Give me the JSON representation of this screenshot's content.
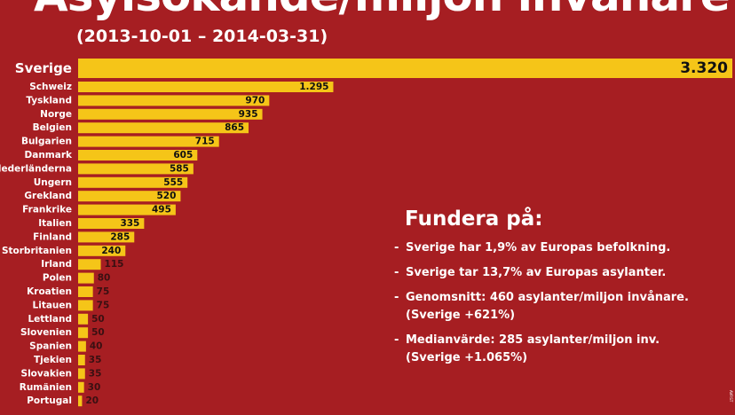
{
  "chart_data": {
    "type": "bar",
    "orientation": "horizontal",
    "title": "Asylsökande/miljon invånare",
    "subtitle": "(2013-10-01 – 2014-03-31)",
    "xlabel": "",
    "ylabel": "",
    "xlim": [
      0,
      3320
    ],
    "grid": false,
    "bar_color": "#f5c518",
    "background_color": "#a61e22",
    "categories": [
      "Sverige",
      "Schweiz",
      "Tyskland",
      "Norge",
      "Belgien",
      "Bulgarien",
      "Danmark",
      "Nederländerna",
      "Ungern",
      "Grekland",
      "Frankrike",
      "Italien",
      "Finland",
      "Storbritanien",
      "Irland",
      "Polen",
      "Kroatien",
      "Litauen",
      "Lettland",
      "Slovenien",
      "Spanien",
      "Tjekien",
      "Slovakien",
      "Rumänien",
      "Portugal"
    ],
    "values": [
      3320,
      1295,
      970,
      935,
      865,
      715,
      605,
      585,
      555,
      520,
      495,
      335,
      285,
      240,
      115,
      80,
      75,
      75,
      50,
      50,
      40,
      35,
      35,
      30,
      20
    ],
    "value_labels": [
      "3.320",
      "1.295",
      "970",
      "935",
      "865",
      "715",
      "605",
      "585",
      "555",
      "520",
      "495",
      "335",
      "285",
      "240",
      "115",
      "80",
      "75",
      "75",
      "50",
      "50",
      "40",
      "35",
      "35",
      "30",
      "20"
    ]
  },
  "notes": {
    "heading": "Fundera på:",
    "items": [
      {
        "line1": "Sverige har 1,9% av Europas befolkning.",
        "line2": ""
      },
      {
        "line1": "Sverige tar 13,7% av Europas asylanter.",
        "line2": ""
      },
      {
        "line1": "Genomsnitt: 460 asylanter/miljon invånare.",
        "line2": "(Sverige +621%)"
      },
      {
        "line1": "Medianvärde: 285 asylanter/miljon inv.",
        "line2": "(Sverige +1.065%)"
      }
    ]
  },
  "credit": "AVP.ST"
}
